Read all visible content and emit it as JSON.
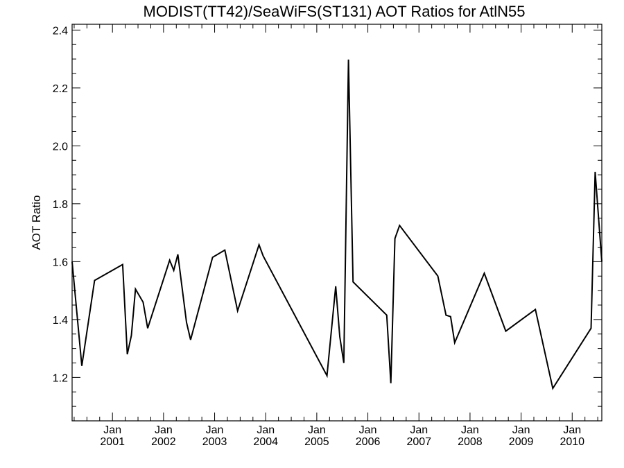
{
  "chart_data": {
    "type": "line",
    "title": "MODIST(TT42)/SeaWiFS(ST131)  AOT Ratios for AtlN55",
    "xlabel": "",
    "ylabel": "AOT Ratio",
    "xlim": [
      2000.21,
      2010.58
    ],
    "ylim": [
      1.05,
      2.42
    ],
    "y_ticks": [
      1.2,
      1.4,
      1.6,
      1.8,
      2.0,
      2.2,
      2.4
    ],
    "y_tick_labels": [
      "1.2",
      "1.4",
      "1.6",
      "1.8",
      "2.0",
      "2.2",
      "2.4"
    ],
    "y_minor_step": 0.05,
    "x_major_ticks": [
      {
        "x": 2001.0,
        "month": "Jan",
        "year": "2001"
      },
      {
        "x": 2002.0,
        "month": "Jan",
        "year": "2002"
      },
      {
        "x": 2003.0,
        "month": "Jan",
        "year": "2003"
      },
      {
        "x": 2004.0,
        "month": "Jan",
        "year": "2004"
      },
      {
        "x": 2005.0,
        "month": "Jan",
        "year": "2005"
      },
      {
        "x": 2006.0,
        "month": "Jan",
        "year": "2006"
      },
      {
        "x": 2007.0,
        "month": "Jan",
        "year": "2007"
      },
      {
        "x": 2008.0,
        "month": "Jan",
        "year": "2008"
      },
      {
        "x": 2009.0,
        "month": "Jan",
        "year": "2009"
      },
      {
        "x": 2010.0,
        "month": "Jan",
        "year": "2010"
      }
    ],
    "x_minor_step_months": 3,
    "series": [
      {
        "points": [
          [
            2000.21,
            1.6
          ],
          [
            2000.4,
            1.24
          ],
          [
            2000.65,
            1.535
          ],
          [
            2001.2,
            1.59
          ],
          [
            2001.29,
            1.28
          ],
          [
            2001.37,
            1.345
          ],
          [
            2001.45,
            1.505
          ],
          [
            2001.6,
            1.46
          ],
          [
            2001.69,
            1.37
          ],
          [
            2002.12,
            1.605
          ],
          [
            2002.2,
            1.57
          ],
          [
            2002.28,
            1.625
          ],
          [
            2002.45,
            1.39
          ],
          [
            2002.53,
            1.33
          ],
          [
            2002.96,
            1.615
          ],
          [
            2003.2,
            1.64
          ],
          [
            2003.45,
            1.43
          ],
          [
            2003.87,
            1.658
          ],
          [
            2003.95,
            1.62
          ],
          [
            2005.2,
            1.206
          ],
          [
            2005.37,
            1.515
          ],
          [
            2005.45,
            1.34
          ],
          [
            2005.53,
            1.25
          ],
          [
            2005.62,
            2.298
          ],
          [
            2005.71,
            1.53
          ],
          [
            2006.37,
            1.415
          ],
          [
            2006.45,
            1.18
          ],
          [
            2006.53,
            1.68
          ],
          [
            2006.62,
            1.725
          ],
          [
            2007.37,
            1.55
          ],
          [
            2007.53,
            1.415
          ],
          [
            2007.62,
            1.41
          ],
          [
            2007.7,
            1.32
          ],
          [
            2008.28,
            1.56
          ],
          [
            2008.7,
            1.36
          ],
          [
            2009.28,
            1.435
          ],
          [
            2009.62,
            1.162
          ],
          [
            2010.37,
            1.37
          ],
          [
            2010.45,
            1.91
          ],
          [
            2010.58,
            1.6
          ]
        ]
      }
    ],
    "grid": false,
    "line_color": "#000000",
    "background": "#ffffff"
  }
}
